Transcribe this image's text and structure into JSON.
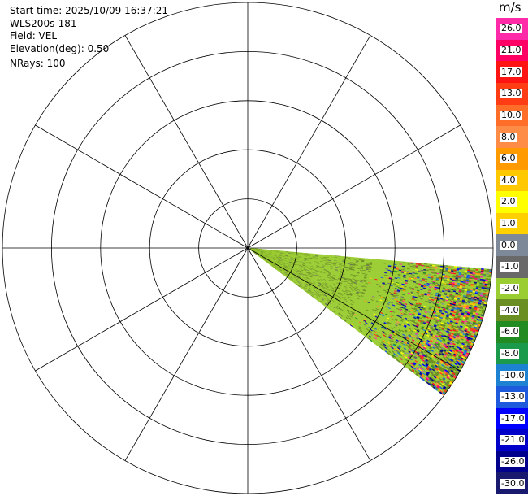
{
  "info": {
    "start_time": "Start time: 2025/10/09 16:37:21",
    "station": "WLS200s-181",
    "field": "Field: VEL",
    "elevation": "Elevation(deg): 0.50",
    "nrays": "NRays: 100"
  },
  "colorbar": {
    "unit": "m/s",
    "bins": [
      {
        "label": "26.0",
        "color": "#ff2aa8"
      },
      {
        "label": "21.0",
        "color": "#ff0064"
      },
      {
        "label": "17.0",
        "color": "#ff1414"
      },
      {
        "label": "13.0",
        "color": "#ff3c14"
      },
      {
        "label": "10.0",
        "color": "#ff6e28"
      },
      {
        "label": "8.0",
        "color": "#ff8c46"
      },
      {
        "label": "6.0",
        "color": "#ff9a00"
      },
      {
        "label": "4.0",
        "color": "#ffc800"
      },
      {
        "label": "2.0",
        "color": "#ffff00"
      },
      {
        "label": "1.0",
        "color": "#ffd000"
      },
      {
        "label": "0.0",
        "color": "#7d8898"
      },
      {
        "label": "-1.0",
        "color": "#696969"
      },
      {
        "label": "-2.0",
        "color": "#9acd32"
      },
      {
        "label": "-4.0",
        "color": "#6b8e23"
      },
      {
        "label": "-6.0",
        "color": "#228b22"
      },
      {
        "label": "-8.0",
        "color": "#1a9a4a"
      },
      {
        "label": "-10.0",
        "color": "#1e82d2"
      },
      {
        "label": "-13.0",
        "color": "#1e5adc"
      },
      {
        "label": "-17.0",
        "color": "#0000ff"
      },
      {
        "label": "-21.0",
        "color": "#0000c8"
      },
      {
        "label": "-26.0",
        "color": "#00008c"
      },
      {
        "label": "-30.0",
        "color": "#191970"
      }
    ]
  },
  "chart_data": {
    "type": "ppi_polar",
    "range_rings": 5,
    "azimuth_spokes_deg": [
      0,
      30,
      60,
      90,
      120,
      150,
      180,
      210,
      240,
      270,
      300,
      330
    ],
    "sector": {
      "azimuth_start_deg": 95,
      "azimuth_end_deg": 127,
      "max_range_fraction": 1.0,
      "dominant_value": -2.0,
      "secondary_value": -4.0,
      "noisy_far_range_fraction": 0.5
    },
    "colors": {
      "grid": "#000000",
      "background": "#ffffff"
    }
  }
}
